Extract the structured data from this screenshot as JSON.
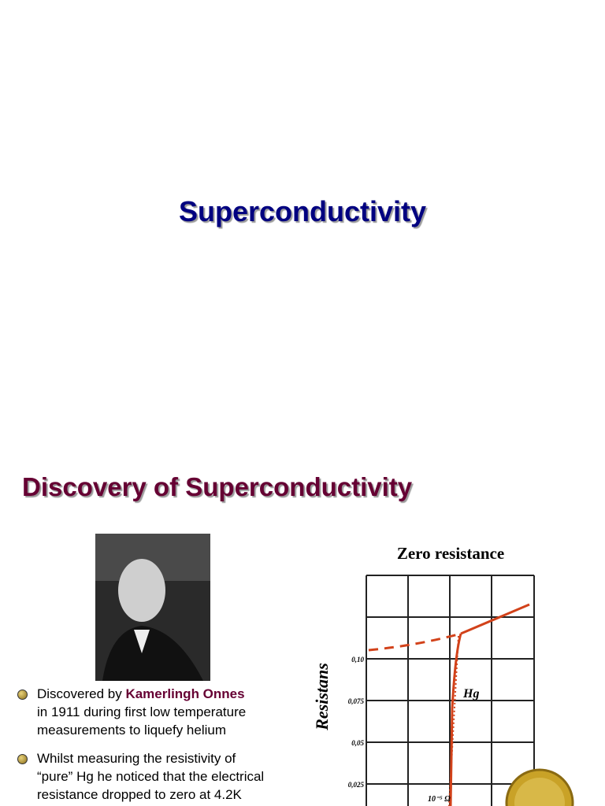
{
  "slide1": {
    "title": "Superconductivity"
  },
  "slide2": {
    "title": "Discovery of Superconductivity",
    "bullets": [
      {
        "lines": [
          [
            "Discovered by ",
            "Kamerlingh Onnes"
          ],
          [
            "in 1911 during first low temperature"
          ],
          [
            "measurements to liquefy helium"
          ]
        ]
      },
      {
        "lines": [
          [
            "Whilst measuring the resistivity of"
          ],
          [
            "“pure” Hg he noticed that the electrical"
          ],
          [
            "resistance dropped to zero at 4.2K"
          ]
        ]
      }
    ],
    "figure": {
      "title": "Zero resistance",
      "y_axis_label": "Resistans",
      "tick_labels": [
        "0,10",
        "0,075",
        "0,05",
        "0,025"
      ],
      "curve_label": "Hg",
      "unit_label": "10⁻⁵ Ω"
    }
  }
}
